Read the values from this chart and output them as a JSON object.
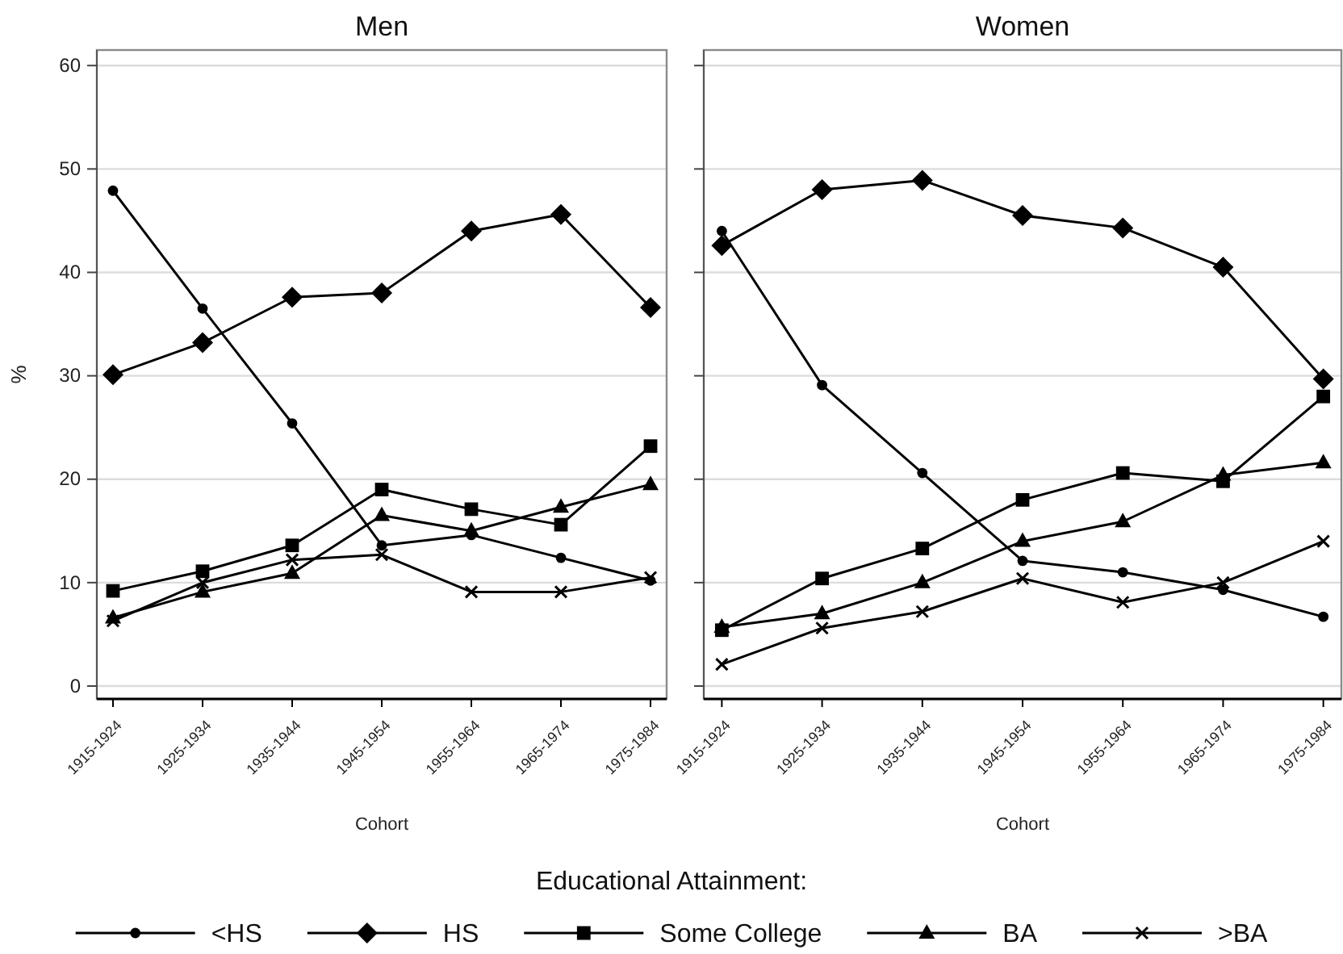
{
  "chart_data": [
    {
      "type": "line",
      "title": "Men",
      "xlabel": "Cohort",
      "ylabel": "%",
      "legend_title": "Educational Attainment:",
      "legend": "bottom",
      "grid": "y",
      "line_style": "solid",
      "categories": [
        "1915-1924",
        "1925-1934",
        "1935-1944",
        "1945-1954",
        "1955-1964",
        "1965-1974",
        "1975-1984"
      ],
      "ylim": [
        -1.25,
        61.5
      ],
      "yticks": [
        0,
        10,
        20,
        30,
        40,
        50,
        60
      ],
      "series": [
        {
          "name": "<HS",
          "color": "#000000",
          "marker": "circle",
          "values": [
            47.9,
            36.5,
            25.4,
            13.6,
            14.6,
            12.4,
            10.2
          ]
        },
        {
          "name": "HS",
          "color": "#000000",
          "marker": "diamond",
          "values": [
            30.1,
            33.2,
            37.6,
            38.0,
            44.0,
            45.6,
            36.6
          ]
        },
        {
          "name": "Some College",
          "color": "#000000",
          "marker": "square",
          "values": [
            9.2,
            11.1,
            13.6,
            19.0,
            17.1,
            15.6,
            23.2
          ]
        },
        {
          "name": "BA",
          "color": "#000000",
          "marker": "triangle",
          "values": [
            6.6,
            9.1,
            10.9,
            16.5,
            15.0,
            17.3,
            19.5
          ]
        },
        {
          "name": ">BA",
          "color": "#000000",
          "marker": "cross",
          "values": [
            6.3,
            10.0,
            12.2,
            12.7,
            9.1,
            9.1,
            10.5
          ]
        }
      ]
    },
    {
      "type": "line",
      "title": "Women",
      "xlabel": "Cohort",
      "grid": "y",
      "line_style": "solid",
      "tick_labels": "x",
      "categories": [
        "1915-1924",
        "1925-1934",
        "1935-1944",
        "1945-1954",
        "1955-1964",
        "1965-1974",
        "1975-1984"
      ],
      "ylim": [
        -1.25,
        61.5
      ],
      "yticks": [
        0,
        10,
        20,
        30,
        40,
        50,
        60
      ],
      "series": [
        {
          "name": "<HS",
          "color": "#000000",
          "marker": "circle",
          "values": [
            44.0,
            29.1,
            20.6,
            12.1,
            11.0,
            9.3,
            6.7
          ]
        },
        {
          "name": "HS",
          "color": "#000000",
          "marker": "diamond",
          "values": [
            42.6,
            48.0,
            48.9,
            45.5,
            44.3,
            40.5,
            29.7
          ]
        },
        {
          "name": "Some College",
          "color": "#000000",
          "marker": "square",
          "values": [
            5.4,
            10.4,
            13.3,
            18.0,
            20.6,
            19.8,
            28.0
          ]
        },
        {
          "name": "BA",
          "color": "#000000",
          "marker": "triangle",
          "values": [
            5.7,
            7.0,
            10.0,
            14.0,
            15.9,
            20.4,
            21.6
          ]
        },
        {
          "name": ">BA",
          "color": "#000000",
          "marker": "cross",
          "values": [
            2.1,
            5.6,
            7.2,
            10.4,
            8.1,
            10.0,
            14.0
          ]
        }
      ]
    }
  ]
}
